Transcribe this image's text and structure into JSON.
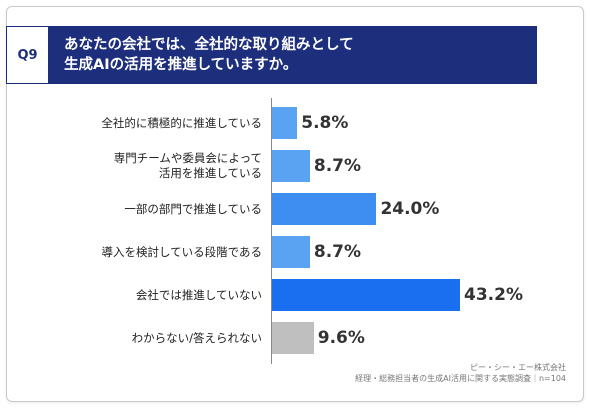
{
  "question": {
    "number": "Q9",
    "title_line1": "あなたの会社では、全社的な取り組みとして",
    "title_line2": "生成AIの活用を推進していますか。"
  },
  "chart_data": {
    "type": "bar",
    "orientation": "horizontal",
    "categories": [
      "全社的に積極的に推進している",
      "専門チームや委員会によって\n活用を推進している",
      "一部の部門で推進している",
      "導入を検討している段階である",
      "会社では推進していない",
      "わからない/答えられない"
    ],
    "values": [
      5.8,
      8.7,
      24.0,
      8.7,
      43.2,
      9.6
    ],
    "value_labels": [
      "5.8%",
      "8.7%",
      "24.0%",
      "8.7%",
      "43.2%",
      "9.6%"
    ],
    "colors": [
      "#5aa2f2",
      "#5aa2f2",
      "#3d8ef0",
      "#5aa2f2",
      "#1a6ff0",
      "#bfbfbf"
    ],
    "xlim": [
      0,
      55
    ],
    "title": "",
    "xlabel": "",
    "ylabel": ""
  },
  "source": {
    "line1": "ピー・シー・エー株式会社",
    "line2": "経理・総務担当者の生成AI活用に関する実態調査｜n=104"
  }
}
